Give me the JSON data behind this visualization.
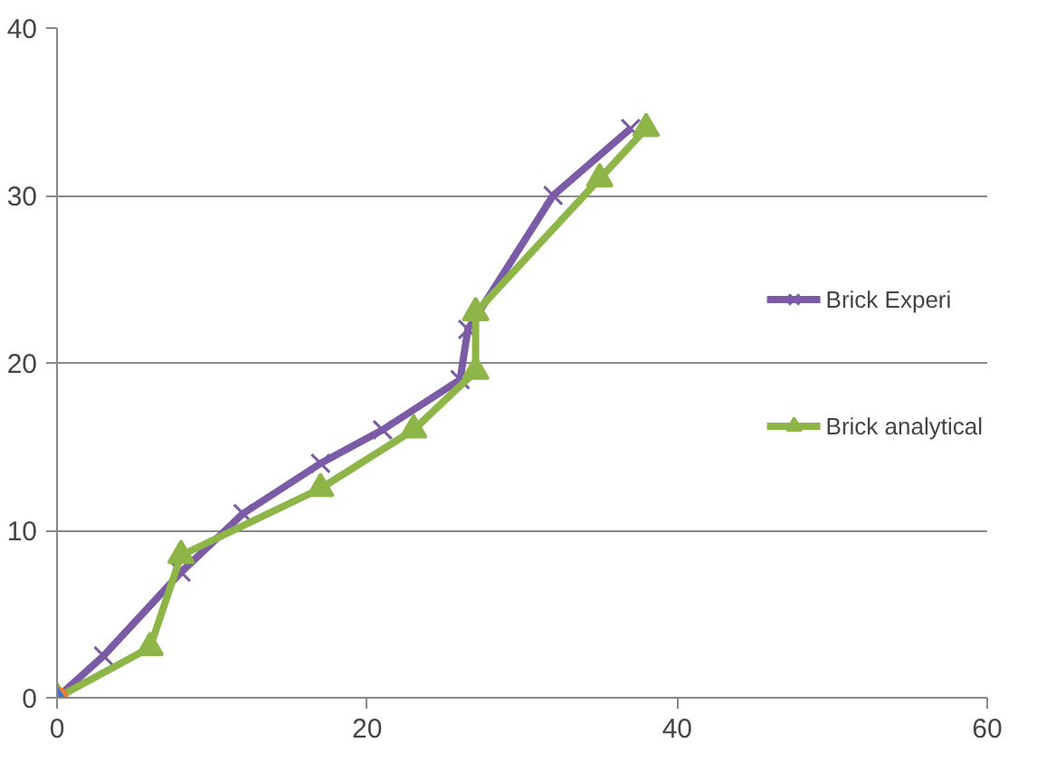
{
  "chart_data": {
    "type": "line",
    "xlim": [
      0,
      60
    ],
    "ylim": [
      0,
      40
    ],
    "xticks": [
      0,
      20,
      40,
      60
    ],
    "yticks": [
      0,
      10,
      20,
      30,
      40
    ],
    "grid": "y",
    "legend": "right",
    "series": [
      {
        "name": "Brick Experi",
        "color": "#7b5aa6",
        "marker": "cross",
        "x": [
          0,
          3,
          8,
          12,
          17,
          21,
          26,
          26.5,
          32,
          37
        ],
        "values": [
          0,
          2.5,
          7.5,
          11,
          14,
          16,
          19,
          22,
          30,
          34
        ]
      },
      {
        "name": "Brick analytical",
        "color": "#8db548",
        "marker": "triangle",
        "x": [
          0,
          6,
          8,
          17,
          23,
          27,
          27,
          35,
          38
        ],
        "values": [
          0,
          3,
          8.5,
          12.5,
          16,
          19.5,
          23,
          31,
          34
        ]
      },
      {
        "type": "scatter",
        "color": "#ed7d31",
        "marker": "circle",
        "x": [
          0
        ],
        "values": [
          0
        ]
      },
      {
        "type": "scatter",
        "color": "#4472c4",
        "marker": "diamond",
        "x": [
          0
        ],
        "values": [
          0
        ]
      }
    ]
  }
}
